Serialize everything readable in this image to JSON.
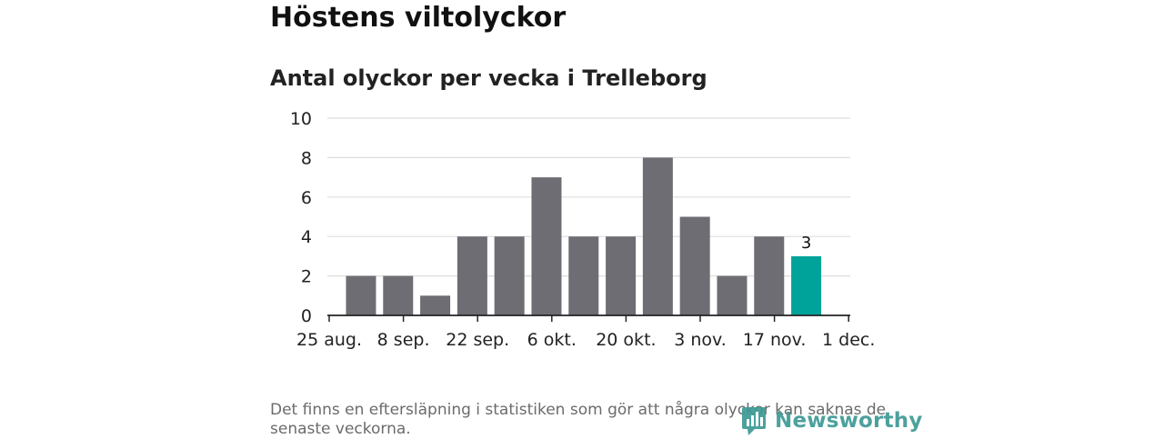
{
  "title": "Höstens viltolyckor",
  "subtitle": "Antal olyckor per vecka i Trelleborg",
  "footnote": "Det finns en eftersläpning i statistiken som gör att några olyckor kan saknas de senaste veckorna.",
  "logo": {
    "text": "Newsworthy",
    "color": "#3d9a95"
  },
  "chart_data": {
    "type": "bar",
    "x_ticks": [
      "25 aug.",
      "8 sep.",
      "22 sep.",
      "6 okt.",
      "20 okt.",
      "3 nov.",
      "17 nov.",
      "1 dec."
    ],
    "weeks": [
      "2020-08-31",
      "2020-09-07",
      "2020-09-14",
      "2020-09-21",
      "2020-09-28",
      "2020-10-05",
      "2020-10-12",
      "2020-10-19",
      "2020-10-26",
      "2020-11-02",
      "2020-11-09",
      "2020-11-16",
      "2020-11-23"
    ],
    "values": [
      2,
      2,
      1,
      4,
      4,
      7,
      4,
      4,
      8,
      5,
      2,
      4,
      3
    ],
    "y_ticks": [
      0,
      2,
      4,
      6,
      8,
      10
    ],
    "ylim": [
      0,
      10
    ],
    "grid": true,
    "bar_color": "#6e6d73",
    "highlight_color": "#00a39a",
    "highlight_index": 12,
    "annotation": {
      "index": 12,
      "text": "3"
    }
  }
}
